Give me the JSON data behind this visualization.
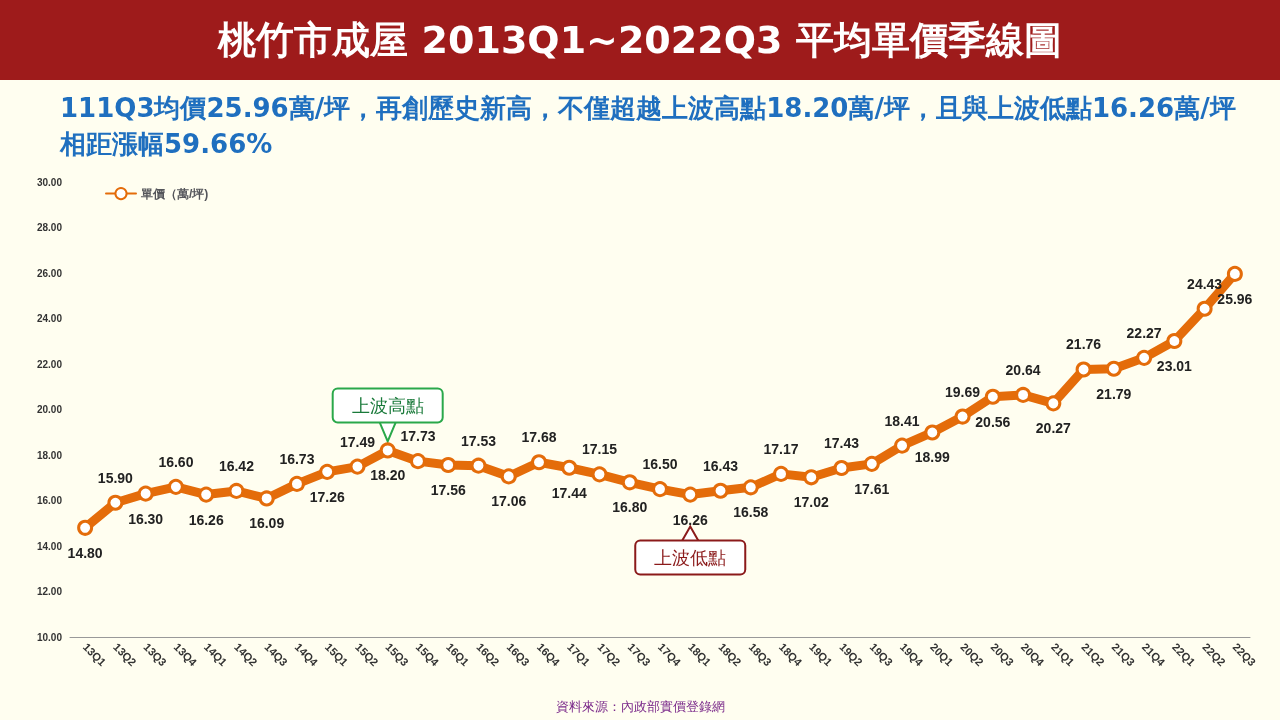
{
  "chart_data": {
    "type": "line",
    "title": "桃竹市成屋 2013Q1~2022Q3 平均單價季線圖",
    "subtitle": "111Q3均價25.96萬/坪，再創歷史新高，不僅超越上波高點18.20萬/坪，且與上波低點16.26萬/坪相距漲幅59.66%",
    "categories": [
      "13Q1",
      "13Q2",
      "13Q3",
      "13Q4",
      "14Q1",
      "14Q2",
      "14Q3",
      "14Q4",
      "15Q1",
      "15Q2",
      "15Q3",
      "15Q4",
      "16Q1",
      "16Q2",
      "16Q3",
      "16Q4",
      "17Q1",
      "17Q2",
      "17Q3",
      "17Q4",
      "18Q1",
      "18Q2",
      "18Q3",
      "18Q4",
      "19Q1",
      "19Q2",
      "19Q3",
      "19Q4",
      "20Q1",
      "20Q2",
      "20Q3",
      "20Q4",
      "21Q1",
      "21Q2",
      "21Q3",
      "21Q4",
      "22Q1",
      "22Q2",
      "22Q3"
    ],
    "series": [
      {
        "name": "單價（萬/坪)",
        "color": "#e46c0a",
        "values": [
          14.8,
          15.9,
          16.3,
          16.6,
          16.26,
          16.42,
          16.09,
          16.73,
          17.26,
          17.49,
          18.2,
          17.73,
          17.56,
          17.53,
          17.06,
          17.68,
          17.44,
          17.15,
          16.8,
          16.5,
          16.26,
          16.43,
          16.58,
          17.17,
          17.02,
          17.43,
          17.61,
          18.41,
          18.99,
          19.69,
          20.56,
          20.64,
          20.27,
          21.76,
          21.79,
          22.27,
          23.01,
          24.43,
          25.96
        ],
        "value_labels": [
          "14.80",
          "15.90",
          "16.30",
          "16.60",
          "16.26",
          "16.42",
          "16.09",
          "16.73",
          "17.26",
          "17.49",
          "18.20",
          "17.73",
          "17.56",
          "17.53",
          "17.06",
          "17.68",
          "17.44",
          "17.15",
          "16.80",
          "16.50",
          "16.26",
          "16.43",
          "16.58",
          "17.17",
          "17.02",
          "17.43",
          "17.61",
          "18.41",
          "18.99",
          "19.69",
          "20.56",
          "20.64",
          "20.27",
          "21.76",
          "21.79",
          "22.27",
          "23.01",
          "24.43",
          "25.96"
        ]
      }
    ],
    "ylim": [
      10,
      30
    ],
    "yticks": [
      {
        "value": 10,
        "label": "10.00"
      },
      {
        "value": 12,
        "label": "12.00"
      },
      {
        "value": 14,
        "label": "14.00"
      },
      {
        "value": 16,
        "label": "16.00"
      },
      {
        "value": 18,
        "label": "18.00"
      },
      {
        "value": 20,
        "label": "20.00"
      },
      {
        "value": 22,
        "label": "22.00"
      },
      {
        "value": 24,
        "label": "24.00"
      },
      {
        "value": 26,
        "label": "26.00"
      },
      {
        "value": 28,
        "label": "28.00"
      },
      {
        "value": 30,
        "label": "30.00"
      }
    ],
    "grid": false,
    "legend": "top left",
    "marker": "circle",
    "line_style": "solid",
    "data_labels": true,
    "annotations": [
      {
        "text": "上波高點",
        "x": "15Q3",
        "y": 18.2
      },
      {
        "text": "上波低點",
        "x": "18Q1",
        "y": 16.26
      },
      "資料來源：內政部實價登錄網"
    ]
  }
}
